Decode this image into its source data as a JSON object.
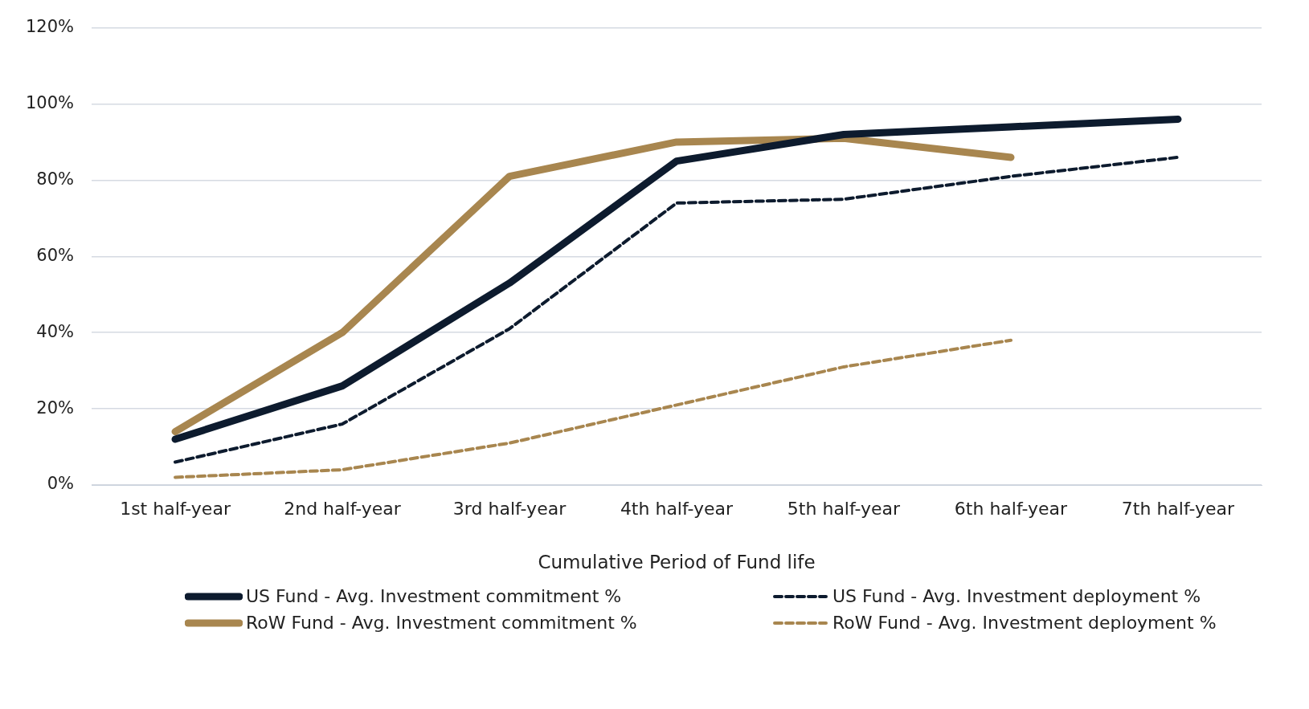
{
  "chart_data": {
    "type": "line",
    "xlabel": "Cumulative Period of Fund life",
    "categories": [
      "1st half-year",
      "2nd half-year",
      "3rd half-year",
      "4th half-year",
      "5th half-year",
      "6th half-year",
      "7th half-year"
    ],
    "series": [
      {
        "name": "US Fund - Avg. Investment commitment %",
        "color": "#0d1b2e",
        "line_style": "solid",
        "values": [
          12,
          26,
          53,
          85,
          92,
          94,
          96
        ]
      },
      {
        "name": "US Fund - Avg. Investment deployment %",
        "color": "#0d1b2e",
        "line_style": "dashed",
        "values": [
          6,
          16,
          41,
          74,
          75,
          81,
          86
        ]
      },
      {
        "name": "RoW Fund - Avg. Investment commitment %",
        "color": "#a8864f",
        "line_style": "solid",
        "values": [
          14,
          40,
          81,
          90,
          91,
          86,
          null
        ]
      },
      {
        "name": "RoW Fund - Avg. Investment deployment %",
        "color": "#a8864f",
        "line_style": "dashed",
        "values": [
          2,
          4,
          11,
          21,
          31,
          38,
          null
        ]
      }
    ],
    "ylim": [
      0,
      120
    ],
    "yticks": [
      {
        "value": 0,
        "label": "0%"
      },
      {
        "value": 20,
        "label": "20%"
      },
      {
        "value": 40,
        "label": "40%"
      },
      {
        "value": 60,
        "label": "60%"
      },
      {
        "value": 80,
        "label": "80%"
      },
      {
        "value": 100,
        "label": "100%"
      },
      {
        "value": 120,
        "label": "120%"
      }
    ],
    "grid": "y",
    "legend": "bottom",
    "marker": "none"
  }
}
